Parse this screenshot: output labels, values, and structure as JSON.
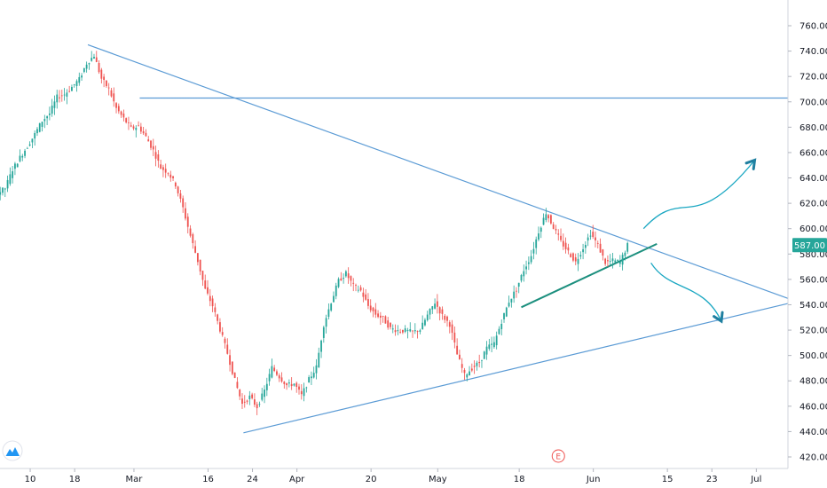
{
  "colors": {
    "up": "#26a69a",
    "down": "#ef5350",
    "trendline": "#5b9bd5",
    "support": "#1c8f7e",
    "arrow": "#1aa7c2",
    "current_price_bg": "#26a69a",
    "earnings_marker": "#ef5350"
  },
  "icons": {
    "logo": "tradingview-cloud-icon"
  },
  "chart_data": {
    "type": "candlestick",
    "title": "",
    "xlabel": "",
    "ylabel": "",
    "ylim": [
      410,
      770
    ],
    "grid": false,
    "y_ticks": [
      "420.00",
      "440.00",
      "460.00",
      "480.00",
      "500.00",
      "520.00",
      "540.00",
      "560.00",
      "580.00",
      "600.00",
      "620.00",
      "640.00",
      "660.00",
      "680.00",
      "700.00",
      "720.00",
      "740.00",
      "760.00"
    ],
    "x_ticks": [
      {
        "label": "10",
        "i": 3
      },
      {
        "label": "18",
        "i": 9
      },
      {
        "label": "Mar",
        "i": 17
      },
      {
        "label": "16",
        "i": 27
      },
      {
        "label": "24",
        "i": 33
      },
      {
        "label": "Apr",
        "i": 39
      },
      {
        "label": "20",
        "i": 49
      },
      {
        "label": "May",
        "i": 58
      },
      {
        "label": "18",
        "i": 69
      },
      {
        "label": "Jun",
        "i": 79
      },
      {
        "label": "15",
        "i": 89
      },
      {
        "label": "23",
        "i": 95
      },
      {
        "label": "Jul",
        "i": 101
      }
    ],
    "current_price": 587,
    "current_price_label": "587.00",
    "earnings_marker": {
      "label": "E",
      "i": 75
    },
    "anchors": [
      {
        "i": 0,
        "v": 632
      },
      {
        "i": 2,
        "v": 660
      },
      {
        "i": 4,
        "v": 675
      },
      {
        "i": 6,
        "v": 695
      },
      {
        "i": 8,
        "v": 705
      },
      {
        "i": 10,
        "v": 720
      },
      {
        "i": 12,
        "v": 735
      },
      {
        "i": 14,
        "v": 710
      },
      {
        "i": 16,
        "v": 685
      },
      {
        "i": 18,
        "v": 680
      },
      {
        "i": 20,
        "v": 665
      },
      {
        "i": 22,
        "v": 640
      },
      {
        "i": 24,
        "v": 620
      },
      {
        "i": 26,
        "v": 570
      },
      {
        "i": 28,
        "v": 540
      },
      {
        "i": 30,
        "v": 500
      },
      {
        "i": 32,
        "v": 465
      },
      {
        "i": 34,
        "v": 460
      },
      {
        "i": 36,
        "v": 490
      },
      {
        "i": 38,
        "v": 480
      },
      {
        "i": 40,
        "v": 470
      },
      {
        "i": 42,
        "v": 495
      },
      {
        "i": 44,
        "v": 545
      },
      {
        "i": 46,
        "v": 565
      },
      {
        "i": 48,
        "v": 550
      },
      {
        "i": 50,
        "v": 530
      },
      {
        "i": 52,
        "v": 525
      },
      {
        "i": 54,
        "v": 520
      },
      {
        "i": 56,
        "v": 525
      },
      {
        "i": 58,
        "v": 540
      },
      {
        "i": 60,
        "v": 520
      },
      {
        "i": 62,
        "v": 485
      },
      {
        "i": 64,
        "v": 495
      },
      {
        "i": 66,
        "v": 510
      },
      {
        "i": 68,
        "v": 545
      },
      {
        "i": 70,
        "v": 565
      },
      {
        "i": 72,
        "v": 600
      },
      {
        "i": 73,
        "v": 610
      },
      {
        "i": 75,
        "v": 585
      },
      {
        "i": 77,
        "v": 570
      },
      {
        "i": 79,
        "v": 595
      },
      {
        "i": 81,
        "v": 578
      },
      {
        "i": 83,
        "v": 575
      },
      {
        "i": 84,
        "v": 587
      }
    ],
    "trend_lines": [
      {
        "name": "descending-resistance-line",
        "p1": {
          "i": 11.5,
          "v": 745
        },
        "p2": {
          "i": 106.5,
          "v": 545
        }
      },
      {
        "name": "ascending-support-line",
        "p1": {
          "i": 32.5,
          "v": 439
        },
        "p2": {
          "i": 106.5,
          "v": 541
        }
      },
      {
        "name": "horizontal-level-line",
        "p1": {
          "i": 18.5,
          "v": 703
        },
        "p2": {
          "i": 106.5,
          "v": 703
        }
      },
      {
        "name": "short-rising-support-line",
        "p1": {
          "i": 70,
          "v": 538
        },
        "p2": {
          "i": 88.3,
          "v": 588
        }
      }
    ],
    "annotations": [
      {
        "name": "bullish-scenario-arrow",
        "kind": "arrow",
        "points": [
          {
            "i": 86.5,
            "v": 600
          },
          {
            "i": 92,
            "v": 635
          },
          {
            "i": 93,
            "v": 593
          },
          {
            "i": 101.5,
            "v": 654
          }
        ]
      },
      {
        "name": "bearish-scenario-arrow",
        "kind": "arrow",
        "points": [
          {
            "i": 87.5,
            "v": 573
          },
          {
            "i": 90,
            "v": 550
          },
          {
            "i": 94.5,
            "v": 558
          },
          {
            "i": 97,
            "v": 527
          }
        ]
      }
    ]
  }
}
